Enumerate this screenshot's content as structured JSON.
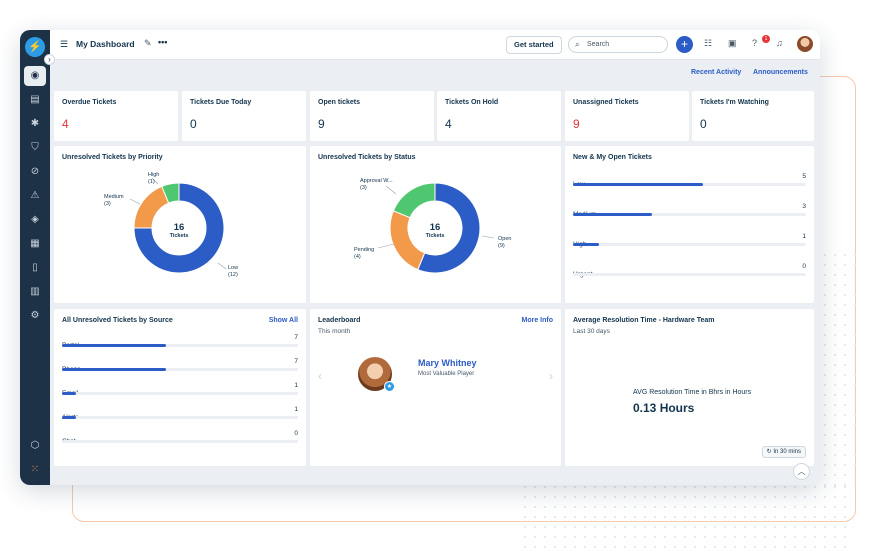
{
  "topbar": {
    "title": "My Dashboard",
    "get_started": "Get started",
    "search_placeholder": "Search",
    "help_badge": "1"
  },
  "subbar": {
    "recent_activity": "Recent Activity",
    "announcements": "Announcements"
  },
  "kpis": [
    {
      "label": "Overdue Tickets",
      "value": "4",
      "color": "#e43538"
    },
    {
      "label": "Tickets Due Today",
      "value": "0",
      "color": "#12344d"
    },
    {
      "label": "Open tickets",
      "value": "9",
      "color": "#12344d"
    },
    {
      "label": "Tickets On Hold",
      "value": "4",
      "color": "#12344d"
    },
    {
      "label": "Unassigned Tickets",
      "value": "9",
      "color": "#e43538"
    },
    {
      "label": "Tickets I'm Watching",
      "value": "0",
      "color": "#12344d"
    }
  ],
  "priority": {
    "title": "Unresolved Tickets by Priority",
    "center_value": "16",
    "center_label": "Tickets",
    "labels": {
      "high": "High",
      "medium": "Medium",
      "low": "Low"
    },
    "counts": {
      "high": "(1)",
      "medium": "(3)",
      "low": "(12)"
    }
  },
  "status": {
    "title": "Unresolved Tickets by Status",
    "center_value": "16",
    "center_label": "Tickets",
    "labels": {
      "approval": "Approval W...",
      "pending": "Pending",
      "open": "Open"
    },
    "counts": {
      "approval": "(3)",
      "pending": "(4)",
      "open": "(9)"
    }
  },
  "chart_data": [
    {
      "type": "pie",
      "title": "Unresolved Tickets by Priority",
      "categories": [
        "Low",
        "Medium",
        "High"
      ],
      "values": [
        12,
        3,
        1
      ],
      "colors": [
        "#2c5cc5",
        "#f2994a",
        "#4fc770"
      ],
      "donut": true
    },
    {
      "type": "pie",
      "title": "Unresolved Tickets by Status",
      "categories": [
        "Open",
        "Pending",
        "Approval W..."
      ],
      "values": [
        9,
        4,
        3
      ],
      "colors": [
        "#2c5cc5",
        "#f2994a",
        "#4fc770"
      ],
      "donut": true
    },
    {
      "type": "bar",
      "title": "New & My Open Tickets",
      "categories": [
        "Low",
        "Medium",
        "High",
        "Urgent"
      ],
      "values": [
        5,
        3,
        1,
        0
      ],
      "xlim": [
        0,
        7
      ]
    },
    {
      "type": "bar",
      "title": "All Unresolved Tickets by Source",
      "categories": [
        "Portal",
        "Phone",
        "Email",
        "Alerts",
        "Chat"
      ],
      "values": [
        7,
        7,
        1,
        1,
        0
      ],
      "xlim": [
        0,
        16
      ]
    }
  ],
  "new_open": {
    "title": "New & My Open Tickets",
    "rows": [
      {
        "label": "Low",
        "value": "5",
        "fraction": 0.56
      },
      {
        "label": "Medium",
        "value": "3",
        "fraction": 0.34
      },
      {
        "label": "High",
        "value": "1",
        "fraction": 0.11
      },
      {
        "label": "Urgent",
        "value": "0",
        "fraction": 0
      }
    ]
  },
  "source": {
    "title": "All Unresolved Tickets by Source",
    "show_all": "Show All",
    "rows": [
      {
        "label": "Portal",
        "value": "7",
        "fraction": 0.44
      },
      {
        "label": "Phone",
        "value": "7",
        "fraction": 0.44
      },
      {
        "label": "Email",
        "value": "1",
        "fraction": 0.06
      },
      {
        "label": "Alerts",
        "value": "1",
        "fraction": 0.06
      },
      {
        "label": "Chat",
        "value": "0",
        "fraction": 0
      }
    ]
  },
  "leaderboard": {
    "title": "Leaderboard",
    "period": "This month",
    "more_info": "More Info",
    "name": "Mary Whitney",
    "role": "Most Valuable Player"
  },
  "resolution": {
    "title": "Average Resolution Time - Hardware Team",
    "period": "Last 30 days",
    "label": "AVG Resolution Time in Bhrs in Hours",
    "value": "0.13 Hours",
    "refresh": "In 30 mins"
  }
}
